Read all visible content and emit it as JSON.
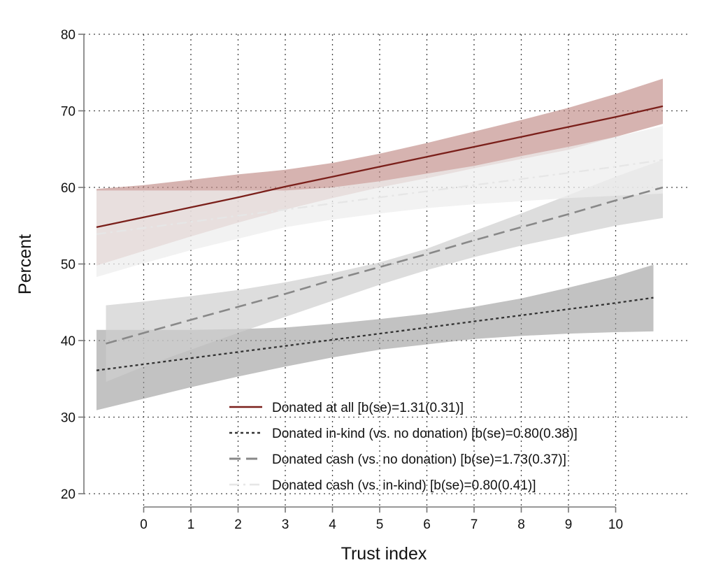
{
  "chart_data": {
    "type": "line",
    "xlabel": "Trust index",
    "ylabel": "Percent",
    "xlim": [
      -1,
      11
    ],
    "ylim": [
      20,
      80
    ],
    "xticks": [
      0,
      1,
      2,
      3,
      4,
      5,
      6,
      7,
      8,
      9,
      10
    ],
    "yticks": [
      20,
      30,
      40,
      50,
      60,
      70,
      80
    ],
    "grid": true,
    "legend_position": "bottom-center",
    "series": [
      {
        "name": "Donated at all [b(se)=1.31(0.31)]",
        "style": "solid",
        "color": "#7a1f1a",
        "band_color": "#c08a86",
        "band_opacity": 0.65,
        "x": [
          -1,
          0,
          1,
          2,
          3,
          4,
          5,
          6,
          7,
          8,
          9,
          10,
          11
        ],
        "values": [
          54.8,
          56.1,
          57.4,
          58.7,
          60.1,
          61.4,
          62.7,
          64.0,
          65.3,
          66.6,
          67.9,
          69.2,
          70.6
        ],
        "lower": [
          49.8,
          51.7,
          53.6,
          55.4,
          57.1,
          58.6,
          60.0,
          61.2,
          62.5,
          63.7,
          64.9,
          66.6,
          68.3
        ],
        "upper": [
          59.8,
          60.3,
          61.0,
          61.7,
          62.3,
          63.2,
          64.4,
          65.8,
          67.3,
          68.8,
          70.4,
          72.2,
          74.2
        ]
      },
      {
        "name": "Donated in-kind (vs. no donation) [b(se)=0.80(0.38)]",
        "style": "dot",
        "color": "#333333",
        "band_color": "#9a9a9a",
        "band_opacity": 0.6,
        "x": [
          -1,
          0,
          1,
          2,
          3,
          4,
          5,
          6,
          7,
          8,
          9,
          10,
          10.8
        ],
        "values": [
          36.1,
          36.9,
          37.7,
          38.5,
          39.3,
          40.1,
          40.9,
          41.7,
          42.5,
          43.3,
          44.1,
          44.9,
          45.6
        ],
        "lower": [
          30.9,
          32.4,
          33.9,
          35.3,
          36.6,
          37.8,
          38.8,
          39.5,
          40.2,
          40.6,
          40.9,
          41.1,
          41.2
        ],
        "upper": [
          41.4,
          41.4,
          41.4,
          41.5,
          41.7,
          42.2,
          42.8,
          43.5,
          44.4,
          45.5,
          46.9,
          48.4,
          49.9
        ]
      },
      {
        "name": "Donated cash (vs. no donation) [b(se)=1.73(0.37)]",
        "style": "dash",
        "color": "#888888",
        "band_color": "#cfcfcf",
        "band_opacity": 0.7,
        "x": [
          -0.8,
          0,
          1,
          2,
          3,
          4,
          5,
          6,
          7,
          8,
          9,
          10,
          11
        ],
        "values": [
          39.6,
          41.0,
          42.7,
          44.4,
          46.1,
          47.9,
          49.6,
          51.3,
          53.1,
          54.8,
          56.5,
          58.3,
          60.0
        ],
        "lower": [
          34.6,
          36.6,
          38.8,
          41.0,
          43.1,
          45.2,
          47.3,
          49.2,
          50.9,
          52.4,
          53.7,
          55.0,
          56.0
        ],
        "upper": [
          44.6,
          45.1,
          45.8,
          46.6,
          47.6,
          48.8,
          50.2,
          52.0,
          54.3,
          56.6,
          59.0,
          61.4,
          63.6
        ]
      },
      {
        "name": "Donated cash (vs. in-kind) [b(se)=0.80(0.41)]",
        "style": "dashdot",
        "color": "#e6e6e6",
        "band_color": "#eeeeee",
        "band_opacity": 0.75,
        "x": [
          -1,
          0,
          1,
          2,
          3,
          4,
          5,
          6,
          7,
          8,
          9,
          10,
          11
        ],
        "values": [
          53.9,
          54.7,
          55.5,
          56.3,
          57.1,
          57.9,
          58.7,
          59.5,
          60.3,
          61.1,
          61.9,
          62.7,
          63.6
        ],
        "lower": [
          48.3,
          50.1,
          51.8,
          53.3,
          54.8,
          55.8,
          56.6,
          57.3,
          57.8,
          58.2,
          58.6,
          58.9,
          59.2
        ],
        "upper": [
          59.6,
          59.6,
          59.6,
          59.6,
          59.6,
          60.0,
          60.8,
          61.8,
          62.8,
          64.1,
          65.3,
          66.6,
          68.0
        ]
      }
    ]
  }
}
